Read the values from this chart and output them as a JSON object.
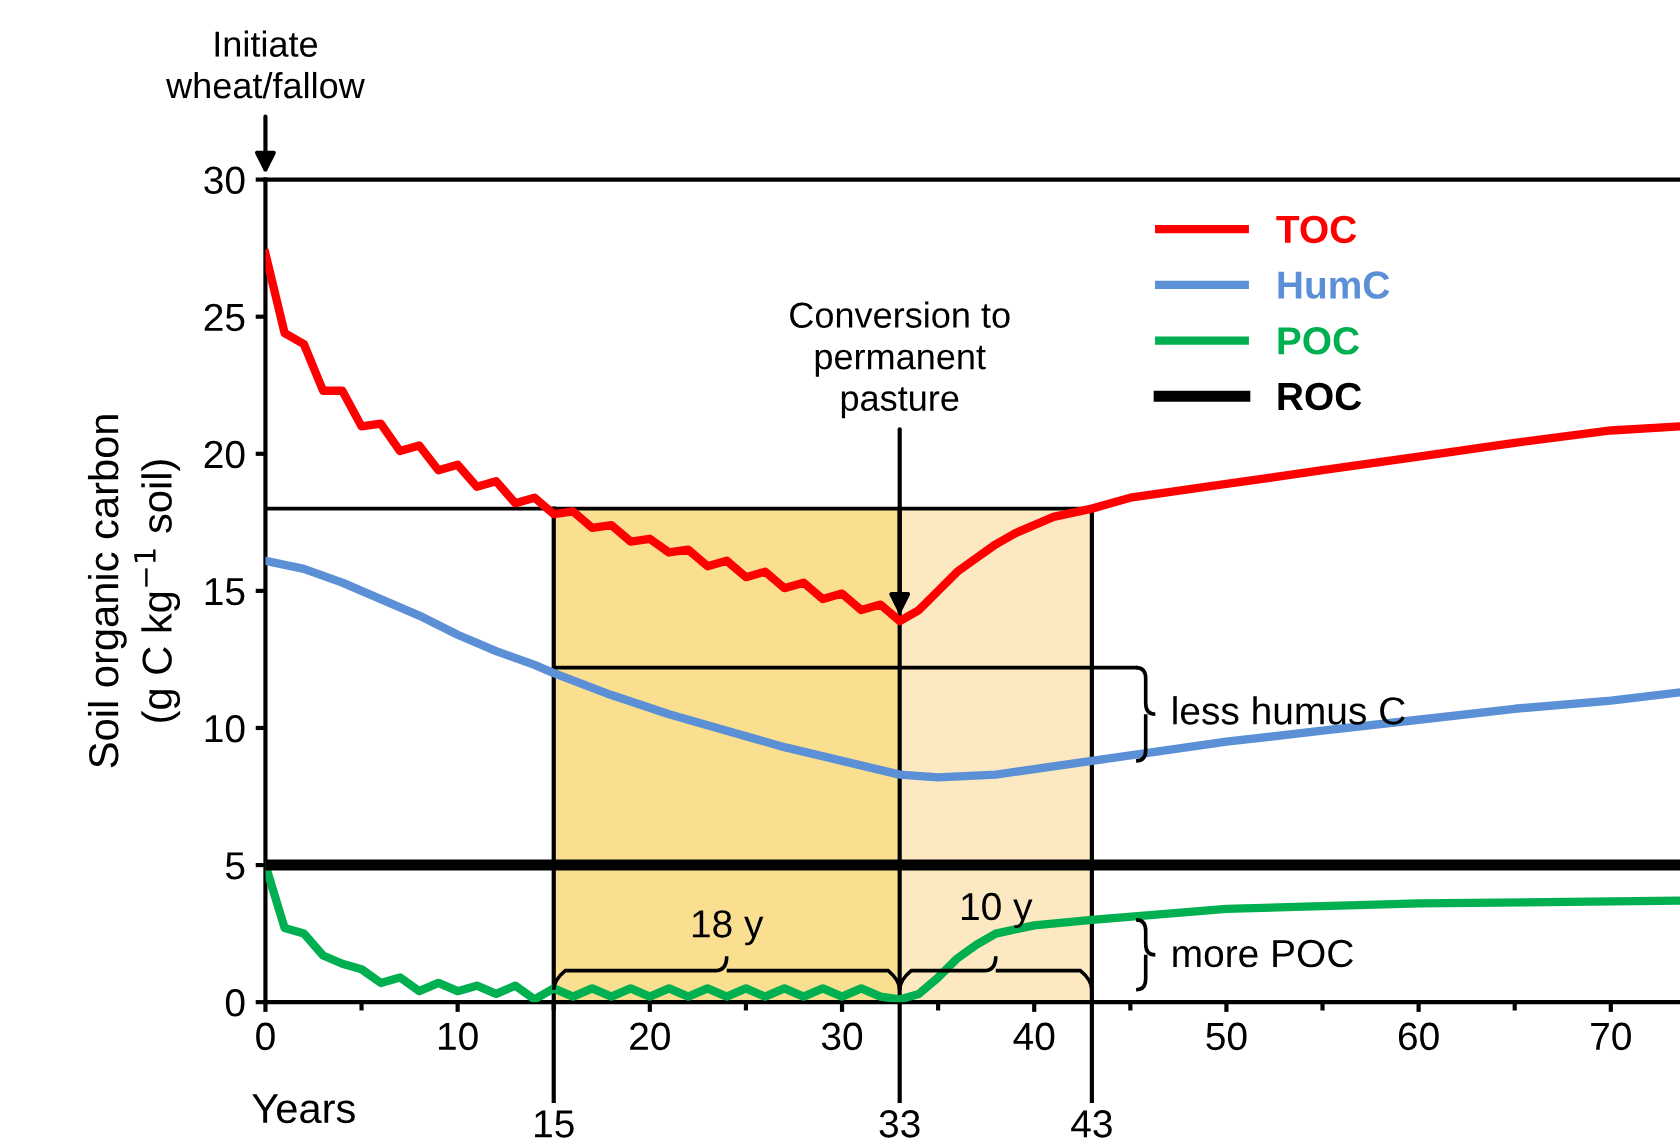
{
  "chart_data": {
    "type": "line",
    "ylabel": "Soil organic carbon\n(g C kg$^{−1}$ soil)",
    "xlabel": "Years",
    "xlim": [
      0,
      73.6
    ],
    "ylim": [
      0,
      30
    ],
    "xticks": [
      0,
      {
        "value": 5,
        "label": null
      },
      10,
      {
        "value": 15,
        "label": null
      },
      20,
      {
        "value": 25,
        "label": null
      },
      30,
      {
        "value": 35,
        "label": null
      },
      40,
      {
        "value": 45,
        "label": null
      },
      50,
      {
        "value": 55,
        "label": null
      },
      60,
      {
        "value": 65,
        "label": null
      },
      70
    ],
    "yticks": [
      0,
      5,
      10,
      15,
      20,
      25,
      30
    ],
    "legend": "top right",
    "grid": false,
    "series": [
      {
        "name": "TOC",
        "color": "#ff0000",
        "x": [
          0,
          1,
          2,
          3,
          4,
          5,
          6,
          7,
          8,
          9,
          10,
          11,
          12,
          13,
          14,
          15,
          16,
          17,
          18,
          19,
          20,
          21,
          22,
          23,
          24,
          25,
          26,
          27,
          28,
          29,
          30,
          31,
          32,
          33,
          34,
          35,
          36,
          37,
          38,
          39,
          40,
          41,
          43,
          45,
          48,
          50,
          55,
          60,
          65,
          70,
          73.6
        ],
        "values": [
          27.3,
          24.4,
          24.0,
          22.3,
          22.3,
          21.0,
          21.1,
          20.1,
          20.3,
          19.4,
          19.6,
          18.8,
          19.0,
          18.2,
          18.4,
          17.8,
          17.9,
          17.3,
          17.4,
          16.8,
          16.9,
          16.4,
          16.5,
          15.9,
          16.1,
          15.5,
          15.7,
          15.1,
          15.3,
          14.7,
          14.9,
          14.3,
          14.5,
          13.9,
          14.3,
          15.0,
          15.7,
          16.2,
          16.7,
          17.1,
          17.4,
          17.7,
          18.0,
          18.4,
          18.7,
          18.9,
          19.4,
          19.9,
          20.4,
          20.85,
          21.0
        ]
      },
      {
        "name": "HumC",
        "color": "#5b8fd6",
        "x": [
          0,
          2,
          4,
          6,
          8,
          10,
          12,
          14,
          15,
          18,
          21,
          24,
          27,
          30,
          33,
          35,
          38,
          40,
          43,
          50,
          55,
          60,
          65,
          70,
          73.6
        ],
        "values": [
          16.1,
          15.8,
          15.3,
          14.7,
          14.1,
          13.4,
          12.8,
          12.3,
          12.0,
          11.2,
          10.5,
          9.9,
          9.3,
          8.8,
          8.3,
          8.2,
          8.3,
          8.5,
          8.8,
          9.5,
          9.9,
          10.3,
          10.7,
          11.0,
          11.3
        ]
      },
      {
        "name": "POC",
        "color": "#00b050",
        "x": [
          0,
          1,
          2,
          3,
          4,
          5,
          6,
          7,
          8,
          9,
          10,
          11,
          12,
          13,
          14,
          15,
          16,
          17,
          18,
          19,
          20,
          21,
          22,
          23,
          24,
          25,
          26,
          27,
          28,
          29,
          30,
          31,
          32,
          33,
          34,
          35,
          36,
          37,
          38,
          40,
          43,
          50,
          60,
          73.6
        ],
        "values": [
          5.0,
          2.7,
          2.5,
          1.7,
          1.4,
          1.2,
          0.7,
          0.9,
          0.4,
          0.7,
          0.4,
          0.6,
          0.3,
          0.6,
          0.1,
          0.5,
          0.2,
          0.5,
          0.2,
          0.5,
          0.2,
          0.5,
          0.2,
          0.5,
          0.2,
          0.5,
          0.2,
          0.5,
          0.2,
          0.5,
          0.2,
          0.5,
          0.2,
          0.1,
          0.3,
          0.9,
          1.6,
          2.1,
          2.5,
          2.8,
          3.0,
          3.4,
          3.6,
          3.7
        ]
      },
      {
        "name": "ROC",
        "color": "#000000",
        "x": [
          0,
          73.6
        ],
        "values": [
          5,
          5
        ]
      },
      {
        "color": "#000000",
        "x": [
          0,
          43
        ],
        "values": [
          18,
          18
        ]
      },
      {
        "color": "#000000",
        "x": [
          15,
          45.3
        ],
        "values": [
          12.2,
          12.2
        ]
      }
    ],
    "ref_lines": [
      {
        "axis": "x",
        "value": 15,
        "label": "15",
        "color": "#000000"
      },
      {
        "axis": "x",
        "value": 33,
        "label": "33",
        "color": "#000000"
      },
      {
        "axis": "x",
        "value": 43,
        "label": "43",
        "color": "#000000"
      }
    ],
    "bands": [
      {
        "axis": "x",
        "from": 15,
        "to": 33,
        "color": "#f9d97c"
      },
      {
        "axis": "x",
        "from": 33,
        "to": 43,
        "color": "#fbe4b6"
      }
    ],
    "annotations": [
      "Initiate\nwheat/fallow",
      {
        "text": "Conversion to\npermanent\npasture",
        "x": 33,
        "y": 13.9
      },
      {
        "text": "18 y",
        "x": 24,
        "y": 0.45
      },
      {
        "text": "10 y",
        "x": 38,
        "y": 2.5
      },
      "less humus C",
      "more POC"
    ]
  }
}
